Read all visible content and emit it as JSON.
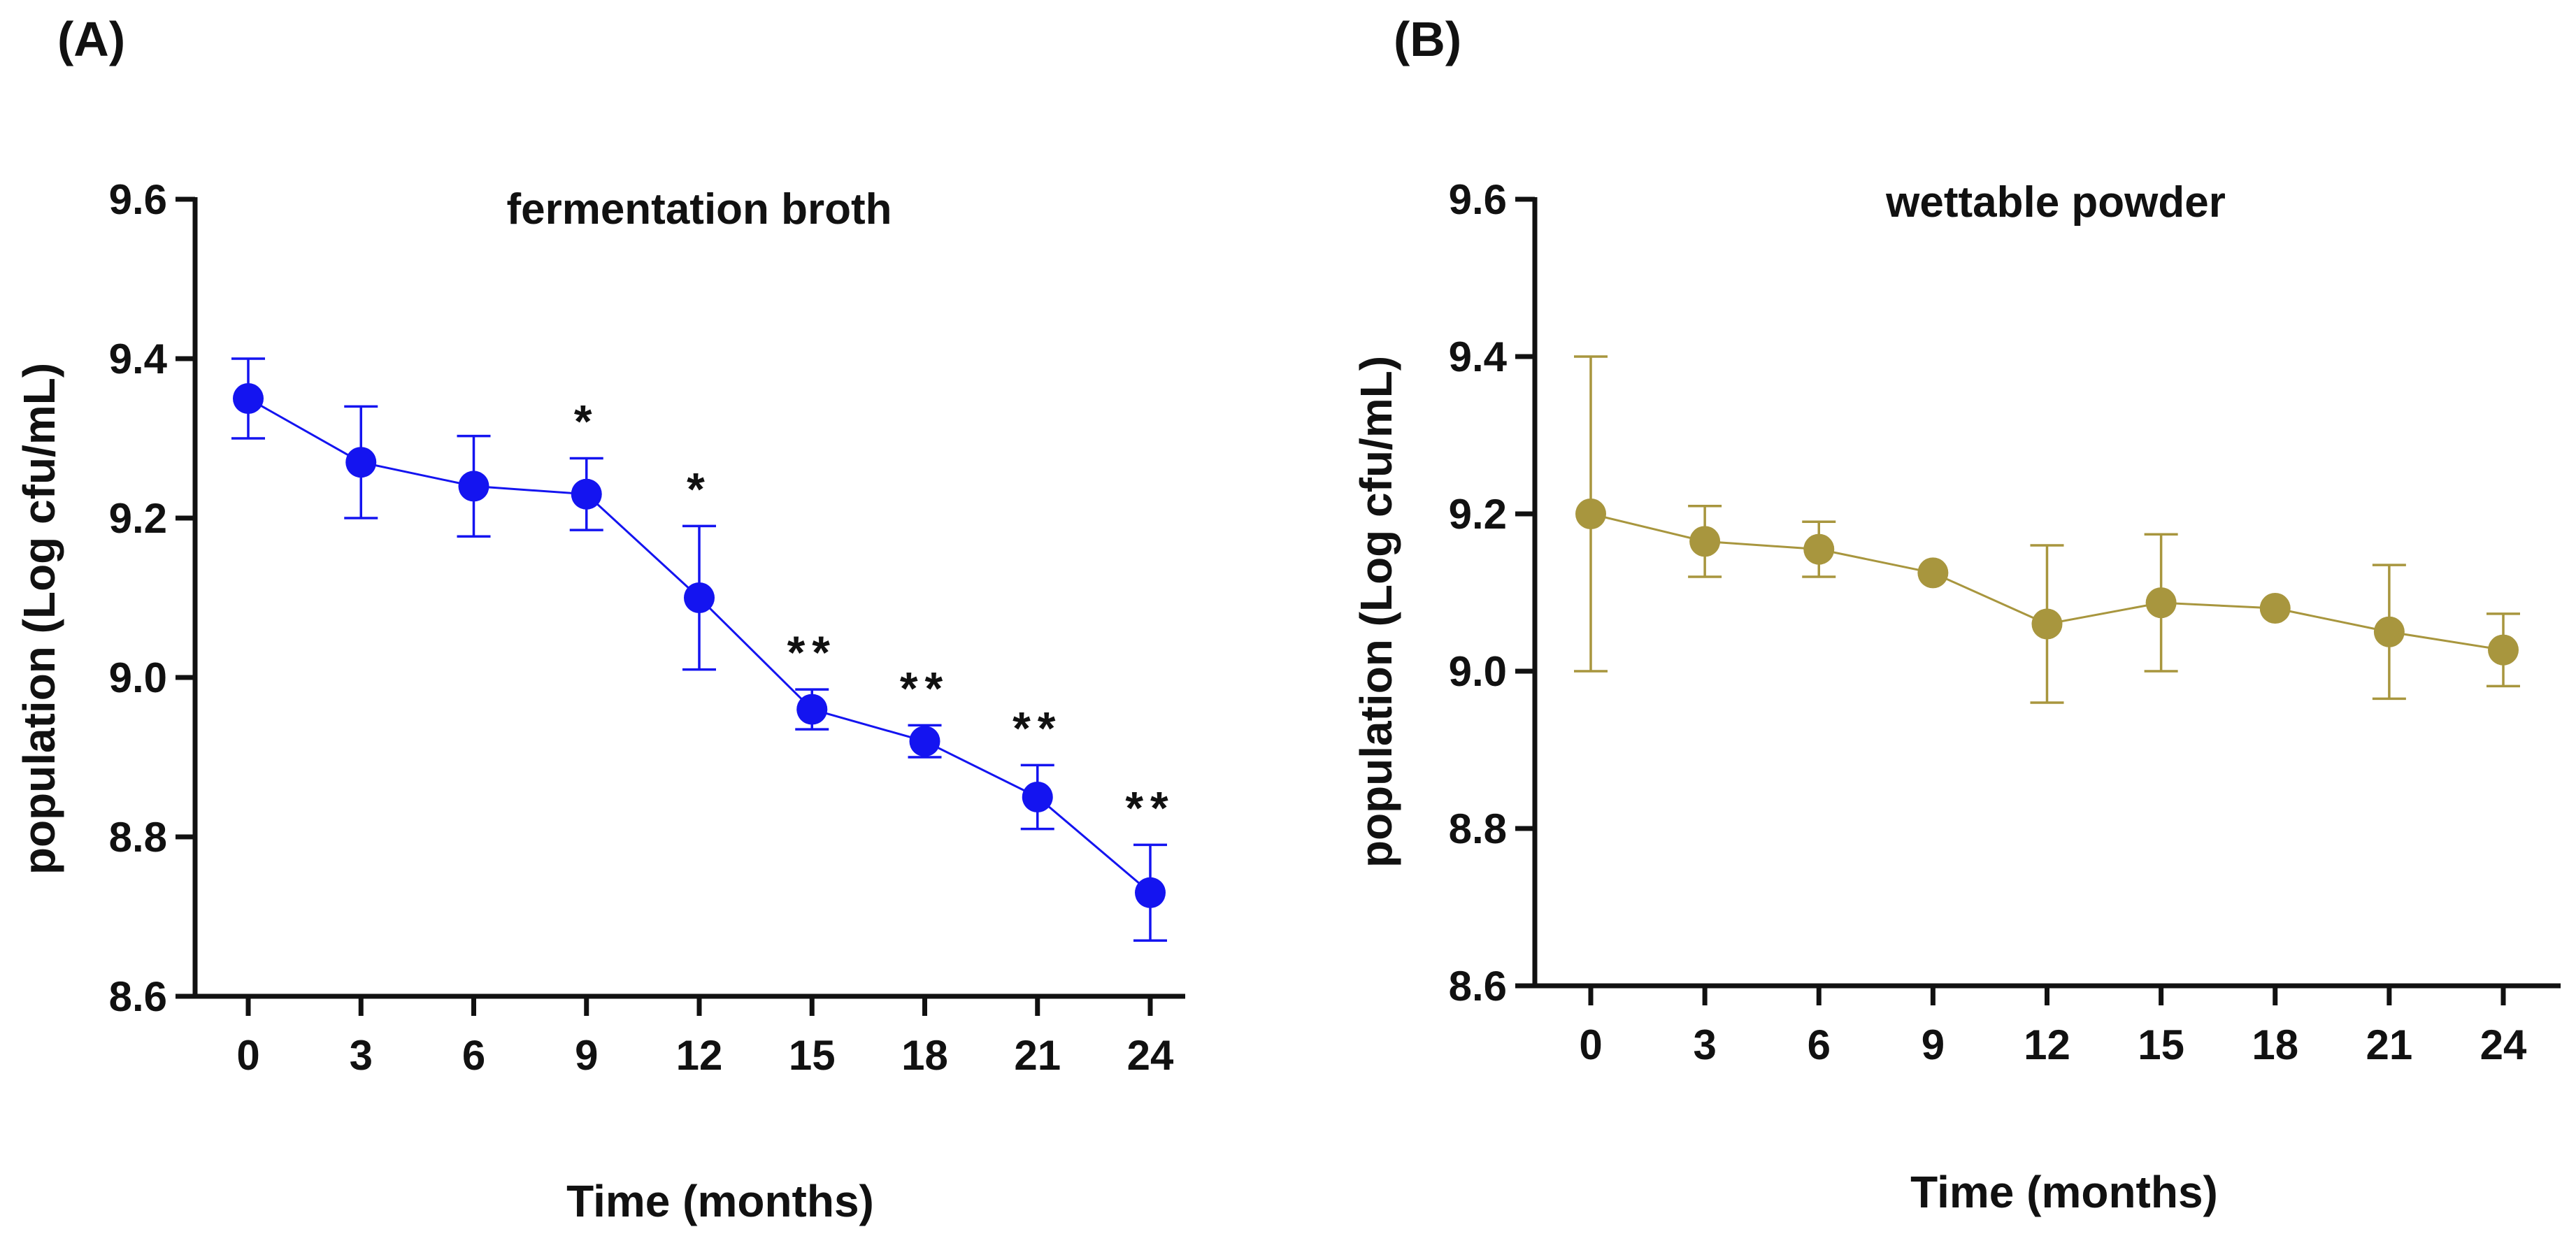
{
  "figure": {
    "panels": [
      {
        "label": "(A)"
      },
      {
        "label": "(B)"
      }
    ]
  },
  "chart_data": [
    {
      "type": "line",
      "title": "fermentation broth",
      "xlabel": "Time (months)",
      "ylabel": "population (Log cfu/mL)",
      "x": [
        0,
        3,
        6,
        9,
        12,
        15,
        18,
        21,
        24
      ],
      "ylim": [
        8.6,
        9.6
      ],
      "y_ticks": [
        "8.6",
        "8.8",
        "9.0",
        "9.2",
        "9.4",
        "9.6"
      ],
      "y_tick_values": [
        8.6,
        8.8,
        9.0,
        9.2,
        9.4,
        9.6
      ],
      "x_ticks": [
        "0",
        "3",
        "6",
        "9",
        "12",
        "15",
        "18",
        "21",
        "24"
      ],
      "color": "#1414f0",
      "series": [
        {
          "name": "fermentation broth",
          "values": [
            9.35,
            9.27,
            9.24,
            9.23,
            9.1,
            8.96,
            8.92,
            8.85,
            8.73
          ],
          "error": [
            0.05,
            0.07,
            0.063,
            0.045,
            0.09,
            0.025,
            0.02,
            0.04,
            0.06
          ]
        }
      ],
      "annotations": [
        "",
        "",
        "",
        "*",
        "*",
        "**",
        "**",
        "**",
        "**"
      ]
    },
    {
      "type": "line",
      "title": "wettable powder",
      "xlabel": "Time (months)",
      "ylabel": "population (Log cfu/mL)",
      "x": [
        0,
        3,
        6,
        9,
        12,
        15,
        18,
        21,
        24
      ],
      "ylim": [
        8.6,
        9.6
      ],
      "y_ticks": [
        "8.6",
        "8.8",
        "9.0",
        "9.2",
        "9.4",
        "9.6"
      ],
      "y_tick_values": [
        8.6,
        8.8,
        9.0,
        9.2,
        9.4,
        9.6
      ],
      "x_ticks": [
        "0",
        "3",
        "6",
        "9",
        "12",
        "15",
        "18",
        "21",
        "24"
      ],
      "color": "#a8963e",
      "series": [
        {
          "name": "wettable powder",
          "values": [
            9.2,
            9.165,
            9.155,
            9.125,
            9.06,
            9.087,
            9.08,
            9.05,
            9.027
          ],
          "error": [
            0.2,
            0.045,
            0.035,
            0.0,
            0.1,
            0.087,
            0.0,
            0.085,
            0.046
          ]
        }
      ],
      "annotations": [
        "",
        "",
        "",
        "",
        "",
        "",
        "",
        "",
        ""
      ]
    }
  ]
}
